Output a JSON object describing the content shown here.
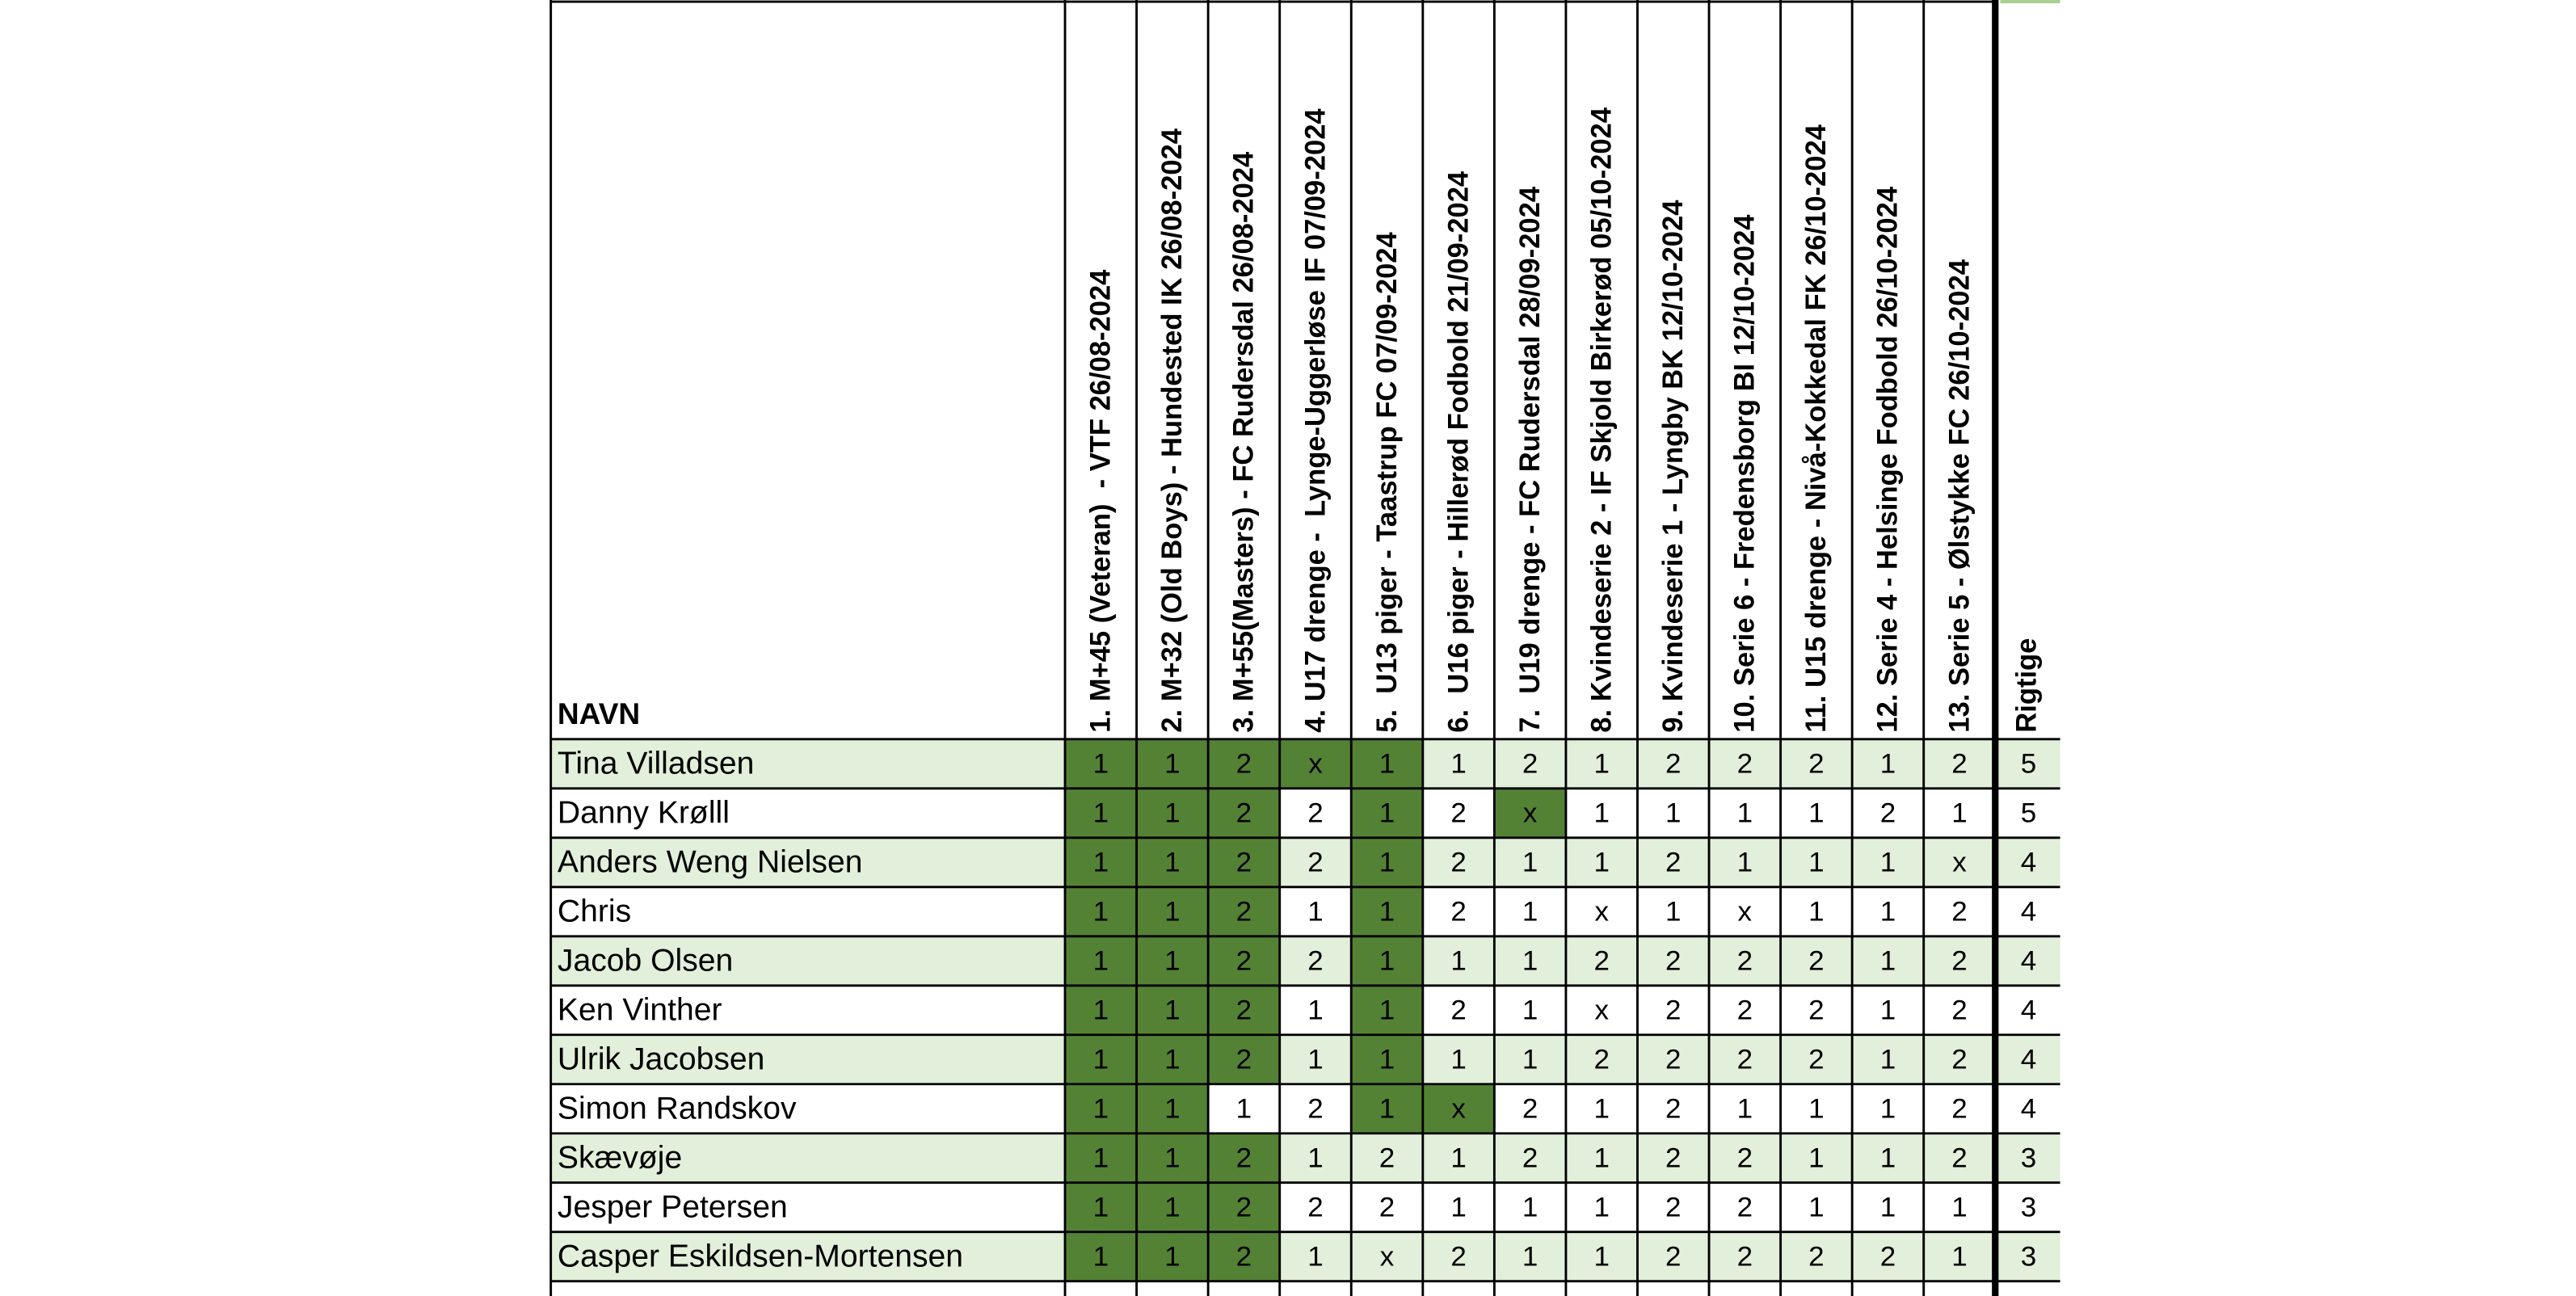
{
  "table": {
    "name_header": "NAVN",
    "game_headers": [
      "1. M+45 (Veteran)  - VTF 26/08-2024",
      "2. M+32 (Old Boys) - Hundested IK 26/08-2024",
      "3. M+55(Masters) - FC Rudersdal 26/08-2024",
      "4. U17 drenge -  Lynge-Uggerløse IF 07/09-2024",
      "5.  U13 piger - Taastrup FC 07/09-2024",
      "6.  U16 piger - Hillerød Fodbold 21/09-2024",
      "7.  U19 drenge - FC Rudersdal 28/09-2024",
      "8. Kvindeserie 2 - IF Skjold Birkerød 05/10-2024",
      "9. Kvindeserie 1 - Lyngby BK 12/10-2024",
      "10. Serie 6 - Fredensborg BI 12/10-2024",
      "11. U15 drenge - Nivå-Kokkedal FK 26/10-2024",
      "12. Serie 4 - Helsinge Fodbold 26/10-2024",
      "13. Serie 5 - Ølstykke FC 26/10-2024"
    ],
    "score_header": "Rigtige",
    "correct_fill": "#548235",
    "stripe_fill": "#e2efda",
    "rows": [
      {
        "name": "Tina Villadsen",
        "picks": [
          "1",
          "1",
          "2",
          "x",
          "1",
          "1",
          "2",
          "1",
          "2",
          "2",
          "2",
          "1",
          "2"
        ],
        "score": 5,
        "correct": [
          0,
          1,
          2,
          3,
          4
        ]
      },
      {
        "name": "Danny Krølll",
        "picks": [
          "1",
          "1",
          "2",
          "2",
          "1",
          "2",
          "x",
          "1",
          "1",
          "1",
          "1",
          "2",
          "1"
        ],
        "score": 5,
        "correct": [
          0,
          1,
          2,
          4,
          6
        ]
      },
      {
        "name": "Anders Weng Nielsen",
        "picks": [
          "1",
          "1",
          "2",
          "2",
          "1",
          "2",
          "1",
          "1",
          "2",
          "1",
          "1",
          "1",
          "x"
        ],
        "score": 4,
        "correct": [
          0,
          1,
          2,
          4
        ]
      },
      {
        "name": "Chris",
        "picks": [
          "1",
          "1",
          "2",
          "1",
          "1",
          "2",
          "1",
          "x",
          "1",
          "x",
          "1",
          "1",
          "2"
        ],
        "score": 4,
        "correct": [
          0,
          1,
          2,
          4
        ]
      },
      {
        "name": "Jacob Olsen",
        "picks": [
          "1",
          "1",
          "2",
          "2",
          "1",
          "1",
          "1",
          "2",
          "2",
          "2",
          "2",
          "1",
          "2"
        ],
        "score": 4,
        "correct": [
          0,
          1,
          2,
          4
        ]
      },
      {
        "name": "Ken Vinther",
        "picks": [
          "1",
          "1",
          "2",
          "1",
          "1",
          "2",
          "1",
          "x",
          "2",
          "2",
          "2",
          "1",
          "2"
        ],
        "score": 4,
        "correct": [
          0,
          1,
          2,
          4
        ]
      },
      {
        "name": "Ulrik Jacobsen",
        "picks": [
          "1",
          "1",
          "2",
          "1",
          "1",
          "1",
          "1",
          "2",
          "2",
          "2",
          "2",
          "1",
          "2"
        ],
        "score": 4,
        "correct": [
          0,
          1,
          2,
          4
        ]
      },
      {
        "name": "Simon Randskov",
        "picks": [
          "1",
          "1",
          "1",
          "2",
          "1",
          "x",
          "2",
          "1",
          "2",
          "1",
          "1",
          "1",
          "2"
        ],
        "score": 4,
        "correct": [
          0,
          1,
          4,
          5
        ]
      },
      {
        "name": "Skævøje",
        "picks": [
          "1",
          "1",
          "2",
          "1",
          "2",
          "1",
          "2",
          "1",
          "2",
          "2",
          "1",
          "1",
          "2"
        ],
        "score": 3,
        "correct": [
          0,
          1,
          2
        ]
      },
      {
        "name": "Jesper Petersen",
        "picks": [
          "1",
          "1",
          "2",
          "2",
          "2",
          "1",
          "1",
          "1",
          "2",
          "2",
          "1",
          "1",
          "1"
        ],
        "score": 3,
        "correct": [
          0,
          1,
          2
        ]
      },
      {
        "name": "Casper Eskildsen-Mortensen",
        "picks": [
          "1",
          "1",
          "2",
          "1",
          "x",
          "2",
          "1",
          "1",
          "2",
          "2",
          "2",
          "2",
          "1"
        ],
        "score": 3,
        "correct": [
          0,
          1,
          2
        ]
      }
    ]
  }
}
